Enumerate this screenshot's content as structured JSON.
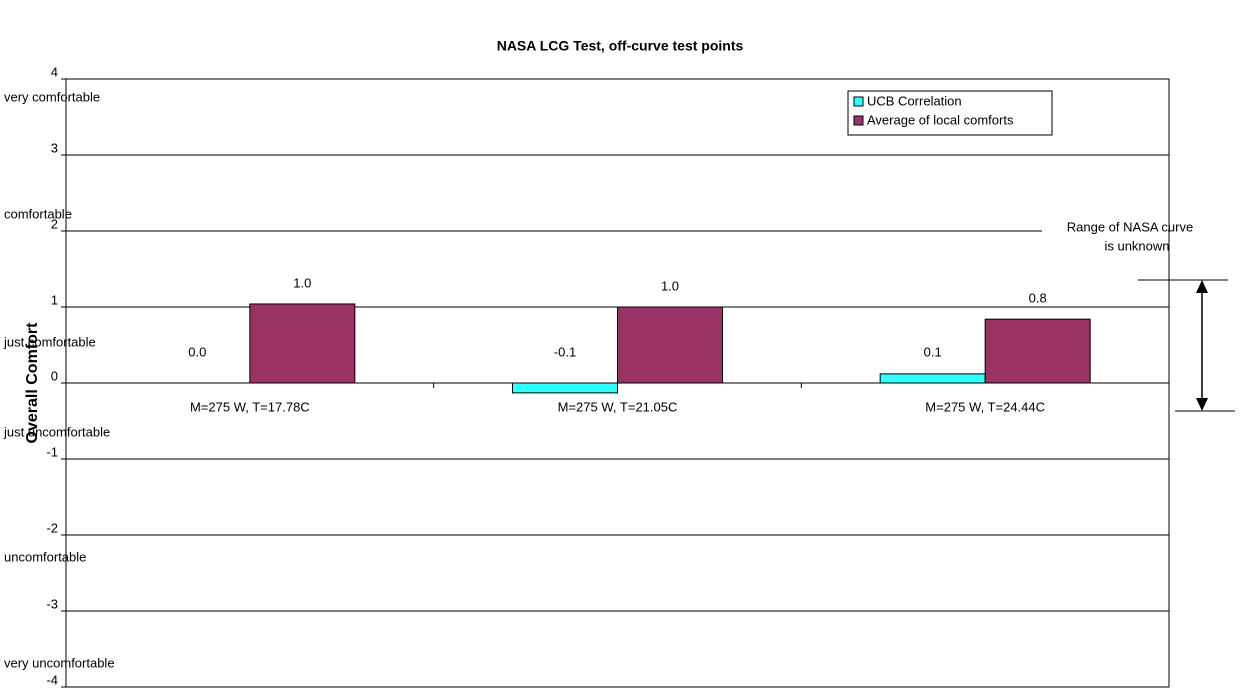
{
  "chart_data": {
    "type": "bar",
    "title": "NASA LCG Test, off-curve test points",
    "y_label": "Overall Comfort",
    "categories": [
      "M=275 W, T=17.78C",
      "M=275 W, T=21.05C",
      "M=275 W, T=24.44C"
    ],
    "series": [
      {
        "name": "UCB Correlation",
        "color": "#33ffff",
        "values": [
          0.0,
          -0.13,
          0.12
        ],
        "value_labels": [
          "0.0",
          "-0.1",
          "0.1"
        ]
      },
      {
        "name": "Average of local comforts",
        "color": "#993366",
        "values": [
          1.04,
          1.0,
          0.84
        ],
        "value_labels": [
          "1.0",
          "1.0",
          "0.8"
        ]
      }
    ],
    "ylim": [
      -4,
      4
    ],
    "yticks": [
      -4,
      -3,
      -2,
      -1,
      0,
      1,
      2,
      3,
      4
    ],
    "grid": true,
    "legend": "upper right",
    "comfort_labels": [
      "very comfortable",
      "comfortable",
      "just comfortable",
      "just uncomfortable",
      "uncomfortable",
      "very uncomfortable"
    ],
    "annotation": [
      "Range of NASA curve",
      "is unknown"
    ]
  }
}
